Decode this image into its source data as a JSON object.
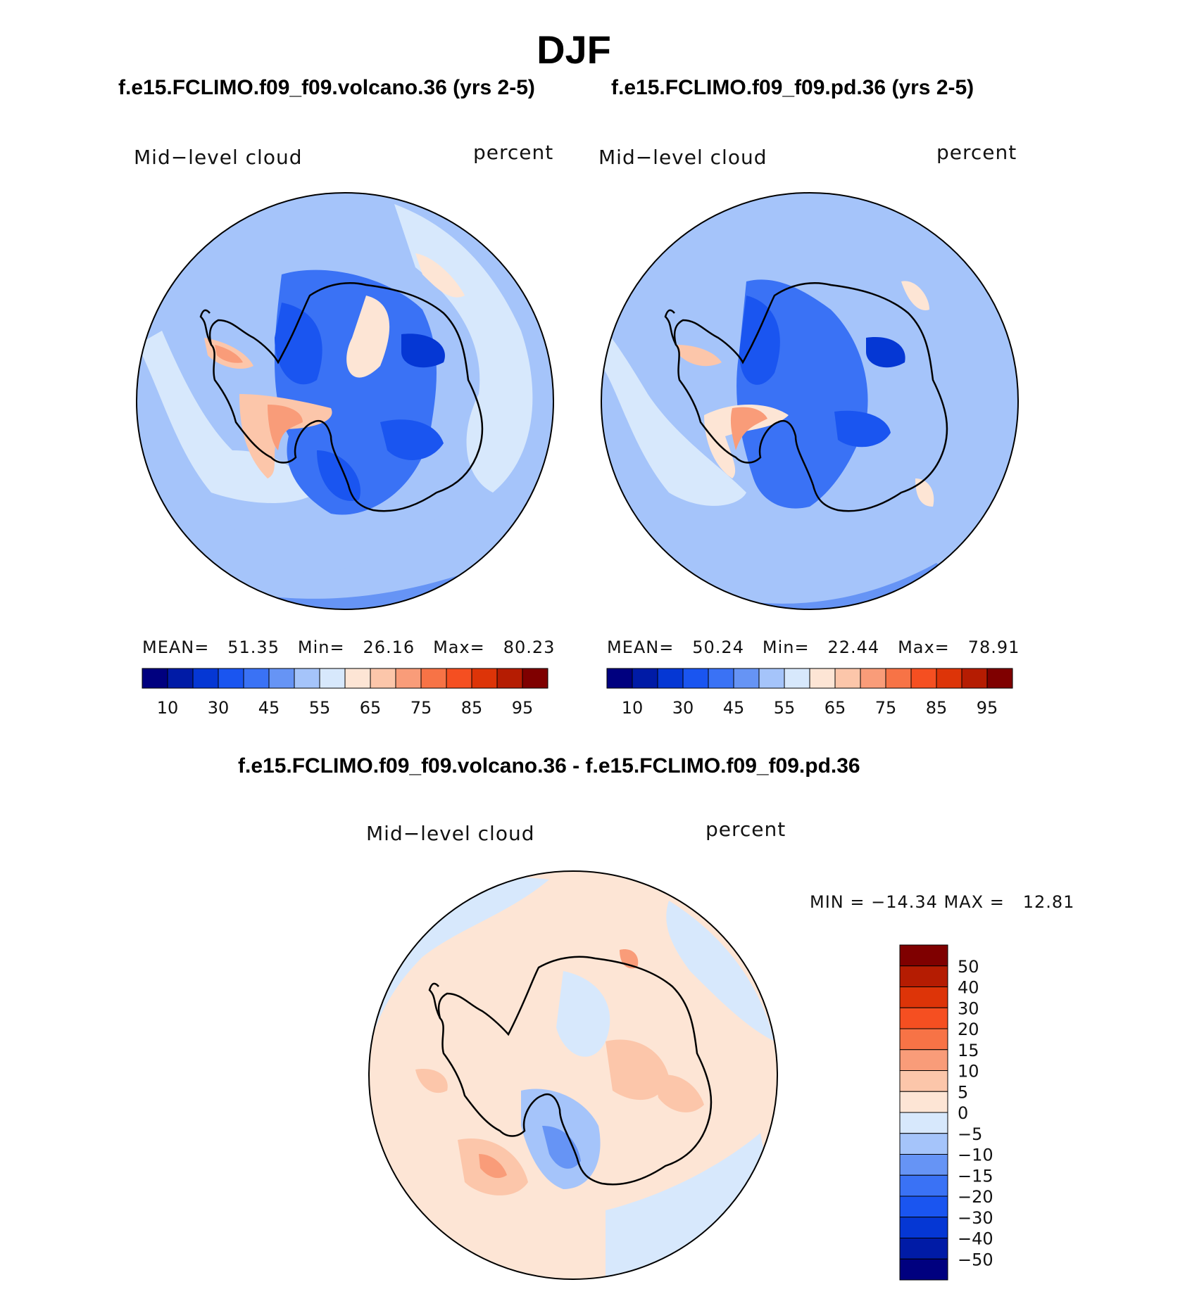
{
  "figure": {
    "season": "DJF",
    "top_titles": [
      "f.e15.FCLIMO.f09_f09.volcano.36 (yrs 2-5)",
      "f.e15.FCLIMO.f09_f09.pd.36 (yrs 2-5)"
    ],
    "diff_title": "f.e15.FCLIMO.f09_f09.volcano.36 - f.e15.FCLIMO.f09_f09.pd.36"
  },
  "panels": [
    {
      "variable": "Mid−level cloud",
      "units": "percent",
      "mean_label": "MEAN=",
      "mean": "51.35",
      "min_label": "Min=",
      "min": "26.16",
      "max_label": "Max=",
      "max": "80.23"
    },
    {
      "variable": "Mid−level cloud",
      "units": "percent",
      "mean_label": "MEAN=",
      "mean": "50.24",
      "min_label": "Min=",
      "min": "22.44",
      "max_label": "Max=",
      "max": "78.91"
    }
  ],
  "diff_panel": {
    "variable": "Mid−level cloud",
    "units": "percent",
    "minmax_text": "MIN = −14.34 MAX =   12.81"
  },
  "chart_data": [
    {
      "type": "heatmap",
      "projection": "south polar stereographic",
      "title": "f.e15.FCLIMO.f09_f09.volcano.36 (yrs 2-5)",
      "variable": "Mid-level cloud",
      "units": "percent",
      "mean": 51.35,
      "min": 26.16,
      "max": 80.23,
      "colorbar_levels": [
        5,
        10,
        20,
        30,
        40,
        45,
        50,
        55,
        60,
        65,
        70,
        75,
        80,
        85,
        90,
        95
      ],
      "colorbar_tick_labels": [
        "10",
        "30",
        "45",
        "55",
        "65",
        "75",
        "85",
        "95"
      ],
      "colorbar_colors": [
        "#00007f",
        "#001ba6",
        "#0537d4",
        "#1a55f0",
        "#3a72f5",
        "#6694f5",
        "#a5c4fa",
        "#d7e8fc",
        "#fde5d5",
        "#fcc6aa",
        "#f99c79",
        "#f77346",
        "#f54f21",
        "#dd3408",
        "#b51c02",
        "#7f0000"
      ],
      "pattern": "high cloud (65-85) over the Antarctic Peninsula and Ross Ice Shelf coast; low (30-45) over East Antarctic plateau; 50-55 over surrounding ocean"
    },
    {
      "type": "heatmap",
      "projection": "south polar stereographic",
      "title": "f.e15.FCLIMO.f09_f09.pd.36 (yrs 2-5)",
      "variable": "Mid-level cloud",
      "units": "percent",
      "mean": 50.24,
      "min": 22.44,
      "max": 78.91,
      "colorbar_levels": [
        5,
        10,
        20,
        30,
        40,
        45,
        50,
        55,
        60,
        65,
        70,
        75,
        80,
        85,
        90,
        95
      ],
      "colorbar_tick_labels": [
        "10",
        "30",
        "45",
        "55",
        "65",
        "75",
        "85",
        "95"
      ],
      "colorbar_colors": [
        "#00007f",
        "#001ba6",
        "#0537d4",
        "#1a55f0",
        "#3a72f5",
        "#6694f5",
        "#a5c4fa",
        "#d7e8fc",
        "#fde5d5",
        "#fcc6aa",
        "#f99c79",
        "#f77346",
        "#f54f21",
        "#dd3408",
        "#b51c02",
        "#7f0000"
      ],
      "pattern": "similar to volcano case with slightly lower cloud fraction over the ocean"
    },
    {
      "type": "heatmap",
      "projection": "south polar stereographic",
      "title": "f.e15.FCLIMO.f09_f09.volcano.36 - f.e15.FCLIMO.f09_f09.pd.36",
      "variable": "Mid-level cloud",
      "units": "percent",
      "min": -14.34,
      "max": 12.81,
      "colorbar_levels": [
        -50,
        -40,
        -30,
        -20,
        -15,
        -10,
        -5,
        0,
        5,
        10,
        15,
        20,
        30,
        40,
        50
      ],
      "colorbar_tick_labels": [
        "50",
        "40",
        "30",
        "20",
        "15",
        "10",
        "5",
        "0",
        "−5",
        "−10",
        "−15",
        "−20",
        "−30",
        "−40",
        "−50"
      ],
      "colorbar_colors": [
        "#7f0000",
        "#b51c02",
        "#dd3408",
        "#f54f21",
        "#f77346",
        "#f99c79",
        "#fcc6aa",
        "#fde5d5",
        "#d7e8fc",
        "#a5c4fa",
        "#6694f5",
        "#3a72f5",
        "#1a55f0",
        "#0537d4",
        "#001ba6",
        "#00007f"
      ],
      "pattern": "mostly within ±5; positive 5-10 over East Antarctic coast and Southern Ocean sector south of Africa; negative -5 to -15 over Ross Sea/West Antarctica"
    }
  ]
}
